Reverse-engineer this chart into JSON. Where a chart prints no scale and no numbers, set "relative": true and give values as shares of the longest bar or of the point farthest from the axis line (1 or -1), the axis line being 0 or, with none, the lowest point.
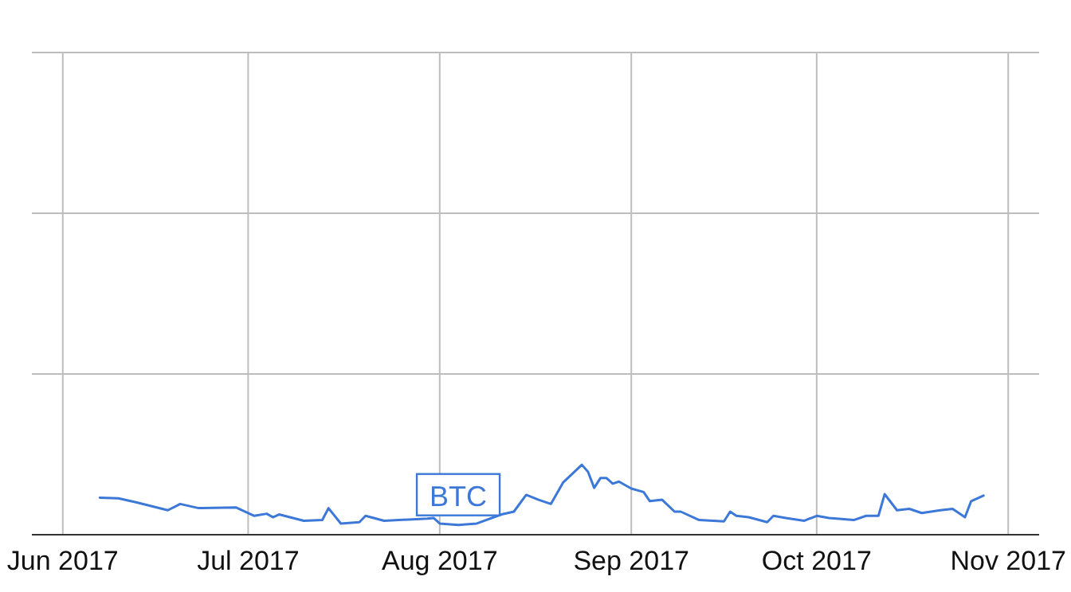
{
  "chart_data": {
    "type": "line",
    "relative": true,
    "grid": true,
    "xlim": [
      "2017-05-27",
      "2017-11-06"
    ],
    "xticks": [
      {
        "value": "2017-06-01",
        "label": "Jun 2017"
      },
      {
        "value": "2017-07-01",
        "label": "Jul 2017"
      },
      {
        "value": "2017-08-01",
        "label": "Aug 2017"
      },
      {
        "value": "2017-09-01",
        "label": "Sep 2017"
      },
      {
        "value": "2017-10-01",
        "label": "Oct 2017"
      },
      {
        "value": "2017-11-01",
        "label": "Nov 2017"
      }
    ],
    "series": [
      {
        "name": "BTC",
        "color": "#3c78d8",
        "x": [
          "2017-06-07",
          "2017-06-10",
          "2017-06-13",
          "2017-06-18",
          "2017-06-20",
          "2017-06-23",
          "2017-06-29",
          "2017-07-02",
          "2017-07-04",
          "2017-07-05",
          "2017-07-06",
          "2017-07-10",
          "2017-07-13",
          "2017-07-14",
          "2017-07-16",
          "2017-07-19",
          "2017-07-20",
          "2017-07-23",
          "2017-07-30",
          "2017-07-31",
          "2017-08-01",
          "2017-08-04",
          "2017-08-07",
          "2017-08-11",
          "2017-08-13",
          "2017-08-15",
          "2017-08-17",
          "2017-08-19",
          "2017-08-21",
          "2017-08-24",
          "2017-08-25",
          "2017-08-26",
          "2017-08-27",
          "2017-08-28",
          "2017-08-29",
          "2017-08-30",
          "2017-09-01",
          "2017-09-03",
          "2017-09-04",
          "2017-09-06",
          "2017-09-08",
          "2017-09-09",
          "2017-09-12",
          "2017-09-16",
          "2017-09-17",
          "2017-09-18",
          "2017-09-20",
          "2017-09-23",
          "2017-09-24",
          "2017-09-26",
          "2017-09-29",
          "2017-10-01",
          "2017-10-03",
          "2017-10-07",
          "2017-10-09",
          "2017-10-11",
          "2017-10-12",
          "2017-10-14",
          "2017-10-16",
          "2017-10-18",
          "2017-10-21",
          "2017-10-23",
          "2017-10-25",
          "2017-10-26",
          "2017-10-28"
        ],
        "values": [
          0.53,
          0.52,
          0.46,
          0.35,
          0.44,
          0.38,
          0.39,
          0.27,
          0.3,
          0.25,
          0.29,
          0.2,
          0.21,
          0.38,
          0.16,
          0.18,
          0.27,
          0.2,
          0.23,
          0.24,
          0.16,
          0.14,
          0.16,
          0.29,
          0.33,
          0.57,
          0.5,
          0.44,
          0.75,
          1,
          0.9,
          0.67,
          0.81,
          0.81,
          0.73,
          0.76,
          0.66,
          0.61,
          0.48,
          0.5,
          0.33,
          0.33,
          0.21,
          0.19,
          0.33,
          0.27,
          0.25,
          0.18,
          0.27,
          0.24,
          0.2,
          0.27,
          0.24,
          0.21,
          0.27,
          0.27,
          0.58,
          0.35,
          0.37,
          0.31,
          0.35,
          0.37,
          0.25,
          0.48,
          0.56
        ]
      }
    ]
  }
}
